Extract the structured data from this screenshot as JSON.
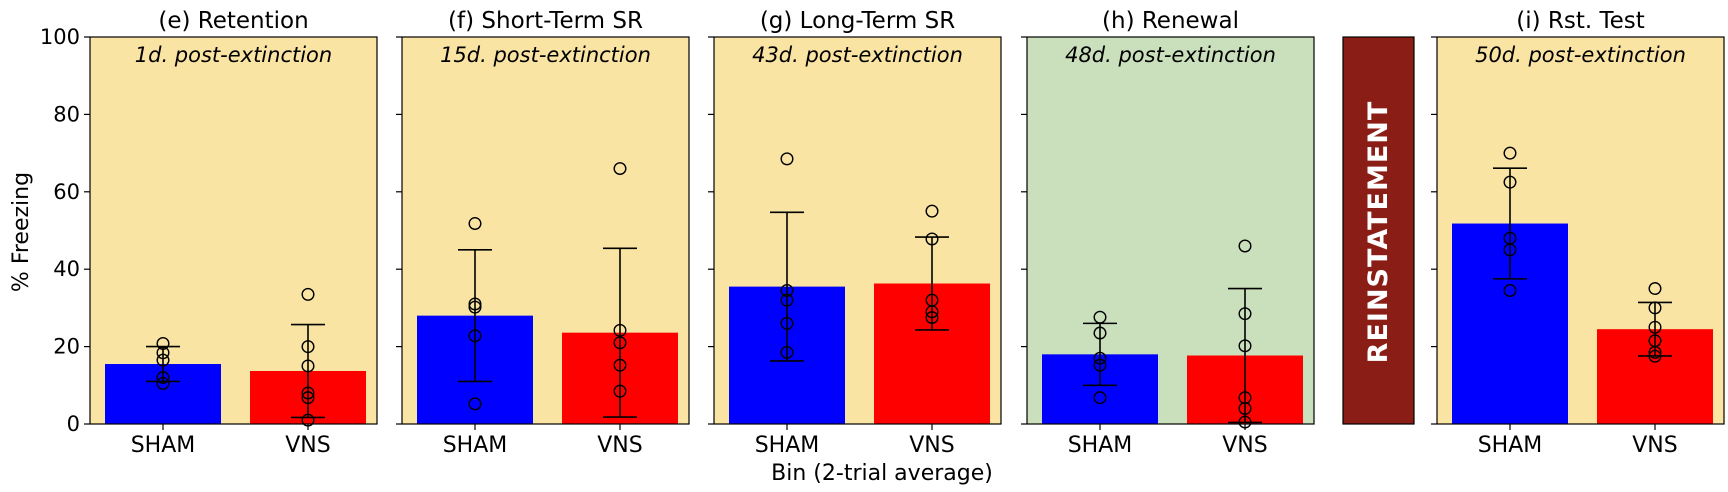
{
  "chart_data": [
    {
      "type": "bar",
      "title": "(e) Retention",
      "subtitle": "1d. post-extinction",
      "background": "#f9e4a3",
      "categories": [
        "SHAM",
        "VNS"
      ],
      "values": [
        15.5,
        13.7
      ],
      "errors": [
        4.5,
        12.0
      ],
      "points": [
        [
          20.8,
          18.4,
          16.5,
          12.0,
          10.5
        ],
        [
          33.5,
          20.0,
          15.0,
          8.0,
          6.8,
          1.0
        ]
      ],
      "ylabel": "% Freezing",
      "ylim": [
        0,
        100
      ],
      "yticks": [
        0,
        20,
        40,
        60,
        80,
        100
      ]
    },
    {
      "type": "bar",
      "title": "(f) Short-Term SR",
      "subtitle": "15d. post-extinction",
      "background": "#f9e4a3",
      "categories": [
        "SHAM",
        "VNS"
      ],
      "values": [
        28.0,
        23.6
      ],
      "errors": [
        17.0,
        21.8
      ],
      "points": [
        [
          51.8,
          31.0,
          30.2,
          22.8,
          5.2
        ],
        [
          66.0,
          24.2,
          21.0,
          15.2,
          8.5
        ]
      ],
      "ylim": [
        0,
        100
      ]
    },
    {
      "type": "bar",
      "title": "(g) Long-Term SR",
      "subtitle": "43d. post-extinction",
      "background": "#f9e4a3",
      "categories": [
        "SHAM",
        "VNS"
      ],
      "values": [
        35.5,
        36.3
      ],
      "errors": [
        19.2,
        12.0
      ],
      "points": [
        [
          68.5,
          34.5,
          32.0,
          26.0,
          18.5
        ],
        [
          55.0,
          47.8,
          32.0,
          29.0,
          27.5
        ]
      ],
      "xlabel": "Bin (2-trial average)",
      "ylim": [
        0,
        100
      ]
    },
    {
      "type": "bar",
      "title": "(h) Renewal",
      "subtitle": "48d. post-extinction",
      "background": "#cadfbb",
      "categories": [
        "SHAM",
        "VNS"
      ],
      "values": [
        18.0,
        17.7
      ],
      "errors": [
        8.0,
        17.3
      ],
      "points": [
        [
          27.6,
          23.5,
          17.0,
          15.2,
          6.8
        ],
        [
          46.0,
          28.5,
          20.2,
          6.8,
          4.0,
          0.5
        ]
      ],
      "ylim": [
        0,
        100
      ]
    },
    {
      "type": "bar",
      "title": "(i) Rst. Test",
      "subtitle": "50d. post-extinction",
      "background": "#f9e4a3",
      "categories": [
        "SHAM",
        "VNS"
      ],
      "values": [
        51.8,
        24.5
      ],
      "errors": [
        14.3,
        6.9
      ],
      "points": [
        [
          70.0,
          62.5,
          48.0,
          45.0,
          34.5
        ],
        [
          35.0,
          30.0,
          25.0,
          21.5,
          18.5,
          17.5
        ]
      ],
      "ylim": [
        0,
        100
      ]
    }
  ],
  "divider": {
    "label": "REINSTATEMENT",
    "color": "#8a1e16"
  },
  "colors": {
    "SHAM": "#0000ff",
    "VNS": "#ff0000"
  }
}
